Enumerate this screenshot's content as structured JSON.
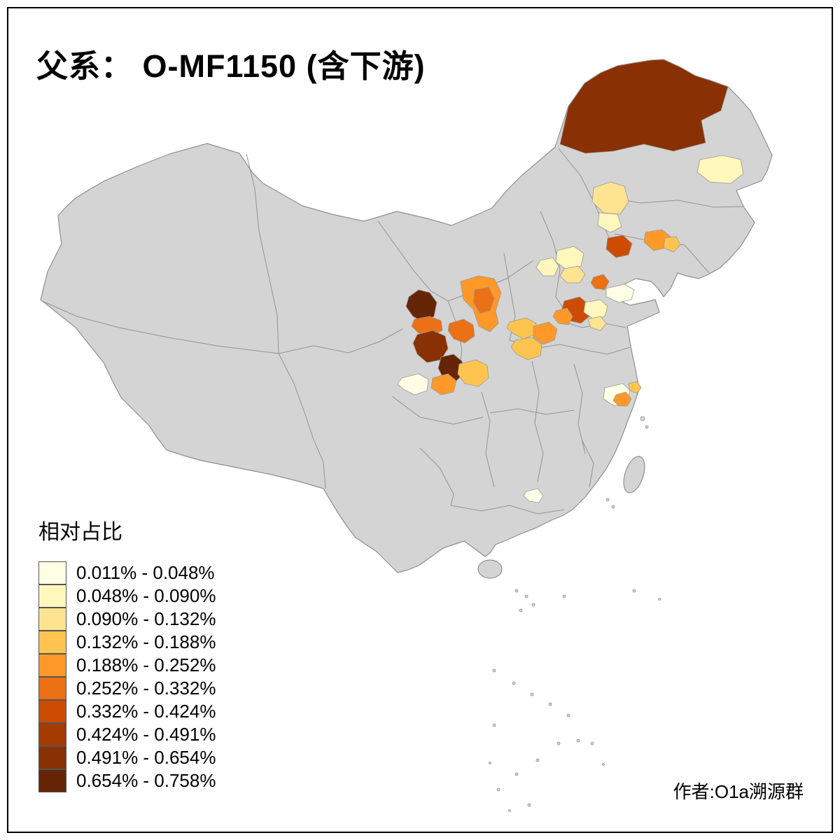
{
  "title": "父系： O-MF1150 (含下游)",
  "attribution": "作者:O1a溯源群",
  "legend": {
    "title": "相对占比",
    "classes": [
      {
        "label": "0.011% - 0.048%",
        "color": "#FFFFE5"
      },
      {
        "label": "0.048% - 0.090%",
        "color": "#FFF7BC"
      },
      {
        "label": "0.090% - 0.132%",
        "color": "#FEE391"
      },
      {
        "label": "0.132% - 0.188%",
        "color": "#FEC44F"
      },
      {
        "label": "0.188% - 0.252%",
        "color": "#FE9929"
      },
      {
        "label": "0.252% - 0.332%",
        "color": "#EC7014"
      },
      {
        "label": "0.332% - 0.424%",
        "color": "#CC4C02"
      },
      {
        "label": "0.424% - 0.491%",
        "color": "#A63A03"
      },
      {
        "label": "0.491% - 0.654%",
        "color": "#8A3005"
      },
      {
        "label": "0.654% - 0.758%",
        "color": "#662506"
      }
    ]
  },
  "map": {
    "base_fill": "#D4D4D4",
    "border_color": "#8F8F8F",
    "sea_color": "#FFFFFF",
    "regions": [
      {
        "id": "hulunbuir",
        "class_index": 8
      },
      {
        "id": "heilongjiang-east",
        "class_index": 1
      },
      {
        "id": "jilin-central",
        "class_index": 2
      },
      {
        "id": "jilin-south",
        "class_index": 1
      },
      {
        "id": "liaoning-west",
        "class_index": 6
      },
      {
        "id": "liaoning-central",
        "class_index": 4
      },
      {
        "id": "liaoning-east",
        "class_index": 3
      },
      {
        "id": "beijing-north",
        "class_index": 1
      },
      {
        "id": "beijing-south",
        "class_index": 2
      },
      {
        "id": "tianjin",
        "class_index": 5
      },
      {
        "id": "hebei-west",
        "class_index": 1
      },
      {
        "id": "shanxi-belt",
        "class_index": 4
      },
      {
        "id": "shanxi-core",
        "class_index": 5
      },
      {
        "id": "gansu-dingxi-dark",
        "class_index": 9
      },
      {
        "id": "gansu-mid-orange",
        "class_index": 5
      },
      {
        "id": "lanzhou-dark",
        "class_index": 8
      },
      {
        "id": "gannan-dark",
        "class_index": 9
      },
      {
        "id": "ningxia-south",
        "class_index": 5
      },
      {
        "id": "sichuan-north",
        "class_index": 3
      },
      {
        "id": "chengdu",
        "class_index": 4
      },
      {
        "id": "sichuan-west-pale",
        "class_index": 0
      },
      {
        "id": "henan-west",
        "class_index": 3
      },
      {
        "id": "henan-east",
        "class_index": 4
      },
      {
        "id": "henan-south",
        "class_index": 3
      },
      {
        "id": "shandong-west",
        "class_index": 6
      },
      {
        "id": "shandong-southwest",
        "class_index": 4
      },
      {
        "id": "shandong-central-pale",
        "class_index": 1
      },
      {
        "id": "shandong-peninsula-pale",
        "class_index": 0
      },
      {
        "id": "jiangsu-north-pale",
        "class_index": 2
      },
      {
        "id": "jiangsu-south-pale",
        "class_index": 0
      },
      {
        "id": "shanghai",
        "class_index": 4
      },
      {
        "id": "jiangsu-coast",
        "class_index": 3
      },
      {
        "id": "guangdong-pale",
        "class_index": 0
      }
    ]
  }
}
